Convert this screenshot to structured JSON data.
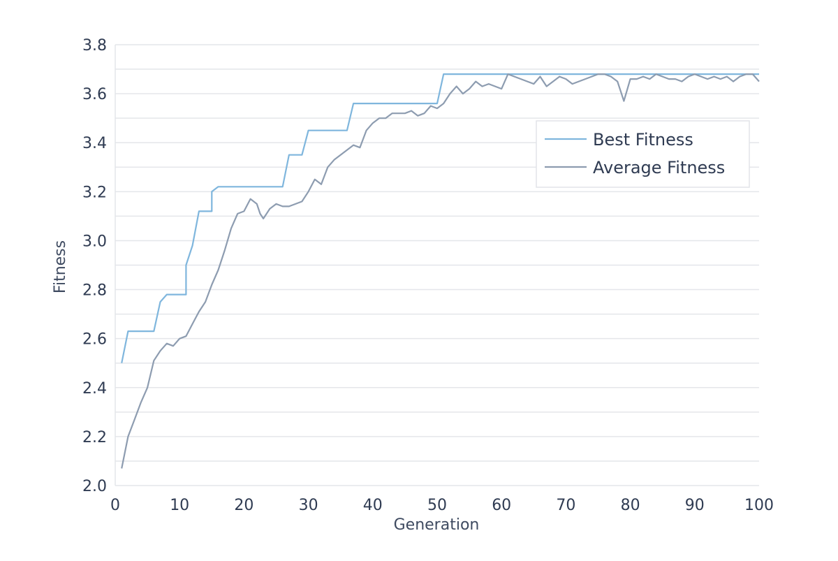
{
  "chart_data": {
    "type": "line",
    "xlabel": "Generation",
    "ylabel": "Fitness",
    "xlim": [
      0,
      100
    ],
    "ylim": [
      2.0,
      3.8
    ],
    "x_ticks": [
      0,
      10,
      20,
      30,
      40,
      50,
      60,
      70,
      80,
      90,
      100
    ],
    "y_ticks": [
      2.0,
      2.2,
      2.4,
      2.6,
      2.8,
      3.0,
      3.2,
      3.4,
      3.6,
      3.8
    ],
    "x_tick_labels": [
      "0",
      "10",
      "20",
      "30",
      "40",
      "50",
      "60",
      "70",
      "80",
      "90",
      "100"
    ],
    "y_tick_labels": [
      "2.0",
      "2.2",
      "2.4",
      "2.6",
      "2.8",
      "3.0",
      "3.2",
      "3.4",
      "3.6",
      "3.8"
    ],
    "grid": "horizontal",
    "legend_position": "upper-right",
    "series": [
      {
        "name": "Best Fitness",
        "color": "#7fb6dd",
        "points": [
          [
            1,
            2.5
          ],
          [
            2,
            2.63
          ],
          [
            6,
            2.63
          ],
          [
            7,
            2.75
          ],
          [
            8,
            2.78
          ],
          [
            11,
            2.78
          ],
          [
            11,
            2.9
          ],
          [
            12,
            2.98
          ],
          [
            13,
            3.12
          ],
          [
            15,
            3.12
          ],
          [
            15,
            3.2
          ],
          [
            16,
            3.22
          ],
          [
            26,
            3.22
          ],
          [
            27,
            3.35
          ],
          [
            29,
            3.35
          ],
          [
            30,
            3.45
          ],
          [
            36,
            3.45
          ],
          [
            37,
            3.56
          ],
          [
            50,
            3.56
          ],
          [
            51,
            3.68
          ],
          [
            100,
            3.68
          ]
        ]
      },
      {
        "name": "Average Fitness",
        "color": "#8d9cb0",
        "points": [
          [
            1,
            2.07
          ],
          [
            2,
            2.2
          ],
          [
            3,
            2.27
          ],
          [
            4,
            2.34
          ],
          [
            5,
            2.4
          ],
          [
            6,
            2.51
          ],
          [
            7,
            2.55
          ],
          [
            8,
            2.58
          ],
          [
            9,
            2.57
          ],
          [
            10,
            2.6
          ],
          [
            11,
            2.61
          ],
          [
            12,
            2.66
          ],
          [
            13,
            2.71
          ],
          [
            14,
            2.75
          ],
          [
            15,
            2.82
          ],
          [
            16,
            2.88
          ],
          [
            17,
            2.96
          ],
          [
            18,
            3.05
          ],
          [
            19,
            3.11
          ],
          [
            20,
            3.12
          ],
          [
            21,
            3.17
          ],
          [
            22,
            3.15
          ],
          [
            22.5,
            3.11
          ],
          [
            23,
            3.09
          ],
          [
            24,
            3.13
          ],
          [
            25,
            3.15
          ],
          [
            26,
            3.14
          ],
          [
            27,
            3.14
          ],
          [
            28,
            3.15
          ],
          [
            29,
            3.16
          ],
          [
            30,
            3.2
          ],
          [
            31,
            3.25
          ],
          [
            32,
            3.23
          ],
          [
            33,
            3.3
          ],
          [
            34,
            3.33
          ],
          [
            35,
            3.35
          ],
          [
            36,
            3.37
          ],
          [
            37,
            3.39
          ],
          [
            38,
            3.38
          ],
          [
            39,
            3.45
          ],
          [
            40,
            3.48
          ],
          [
            41,
            3.5
          ],
          [
            42,
            3.5
          ],
          [
            43,
            3.52
          ],
          [
            44,
            3.52
          ],
          [
            45,
            3.52
          ],
          [
            46,
            3.53
          ],
          [
            47,
            3.51
          ],
          [
            48,
            3.52
          ],
          [
            49,
            3.55
          ],
          [
            50,
            3.54
          ],
          [
            51,
            3.56
          ],
          [
            52,
            3.6
          ],
          [
            53,
            3.63
          ],
          [
            54,
            3.6
          ],
          [
            55,
            3.62
          ],
          [
            56,
            3.65
          ],
          [
            57,
            3.63
          ],
          [
            58,
            3.64
          ],
          [
            59,
            3.63
          ],
          [
            60,
            3.62
          ],
          [
            61,
            3.68
          ],
          [
            62,
            3.67
          ],
          [
            63,
            3.66
          ],
          [
            64,
            3.65
          ],
          [
            65,
            3.64
          ],
          [
            66,
            3.67
          ],
          [
            67,
            3.63
          ],
          [
            68,
            3.65
          ],
          [
            69,
            3.67
          ],
          [
            70,
            3.66
          ],
          [
            71,
            3.64
          ],
          [
            72,
            3.65
          ],
          [
            73,
            3.66
          ],
          [
            74,
            3.67
          ],
          [
            75,
            3.68
          ],
          [
            76,
            3.68
          ],
          [
            77,
            3.67
          ],
          [
            78,
            3.65
          ],
          [
            79,
            3.57
          ],
          [
            80,
            3.66
          ],
          [
            81,
            3.66
          ],
          [
            82,
            3.67
          ],
          [
            83,
            3.66
          ],
          [
            84,
            3.68
          ],
          [
            85,
            3.67
          ],
          [
            86,
            3.66
          ],
          [
            87,
            3.66
          ],
          [
            88,
            3.65
          ],
          [
            89,
            3.67
          ],
          [
            90,
            3.68
          ],
          [
            91,
            3.67
          ],
          [
            92,
            3.66
          ],
          [
            93,
            3.67
          ],
          [
            94,
            3.66
          ],
          [
            95,
            3.67
          ],
          [
            96,
            3.65
          ],
          [
            97,
            3.67
          ],
          [
            98,
            3.68
          ],
          [
            99,
            3.68
          ],
          [
            100,
            3.65
          ]
        ]
      }
    ]
  }
}
